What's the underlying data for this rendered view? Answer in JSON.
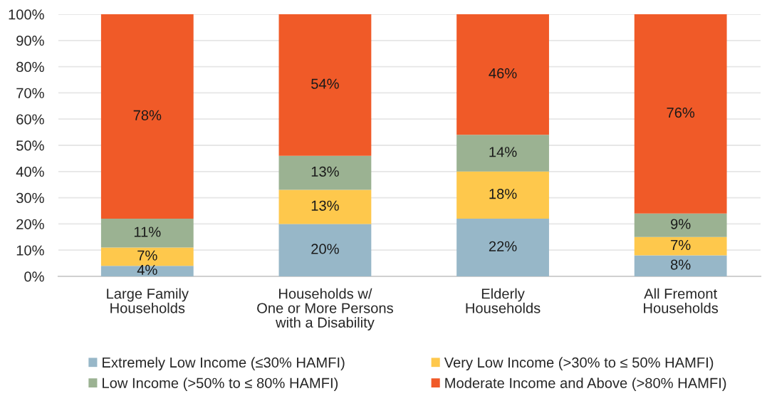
{
  "chart_data": {
    "type": "bar",
    "stacked": true,
    "categories": [
      "Large Family\nHouseholds",
      "Households w/\nOne or More Persons\nwith a Disability",
      "Elderly\nHouseholds",
      "All Fremont\nHouseholds"
    ],
    "series": [
      {
        "name": "Extremely Low Income (≤30% HAMFI)",
        "color": "#97b7c8",
        "values": [
          4,
          20,
          22,
          8
        ],
        "value_labels": [
          "4%",
          "20%",
          "22%",
          "8%"
        ]
      },
      {
        "name": "Very Low Income (>30% to ≤ 50% HAMFI)",
        "color": "#fec84c",
        "values": [
          7,
          13,
          18,
          7
        ],
        "value_labels": [
          "7%",
          "13%",
          "18%",
          "7%"
        ]
      },
      {
        "name": "Low Income (>50% to ≤ 80% HAMFI)",
        "color": "#9bb292",
        "values": [
          11,
          13,
          14,
          9
        ],
        "value_labels": [
          "11%",
          "13%",
          "14%",
          "9%"
        ]
      },
      {
        "name": "Moderate Income and Above (>80% HAMFI)",
        "color": "#f05a28",
        "values": [
          78,
          54,
          46,
          76
        ],
        "value_labels": [
          "78%",
          "54%",
          "46%",
          "76%"
        ]
      }
    ],
    "ylim": [
      0,
      100
    ],
    "yticks": [
      {
        "value": 0,
        "label": "0%"
      },
      {
        "value": 10,
        "label": "10%"
      },
      {
        "value": 20,
        "label": "20%"
      },
      {
        "value": 30,
        "label": "30%"
      },
      {
        "value": 40,
        "label": "40%"
      },
      {
        "value": 50,
        "label": "50%"
      },
      {
        "value": 60,
        "label": "60%"
      },
      {
        "value": 70,
        "label": "70%"
      },
      {
        "value": 80,
        "label": "80%"
      },
      {
        "value": 90,
        "label": "90%"
      },
      {
        "value": 100,
        "label": "100%"
      }
    ],
    "grid": "y",
    "legend": "bottom"
  }
}
